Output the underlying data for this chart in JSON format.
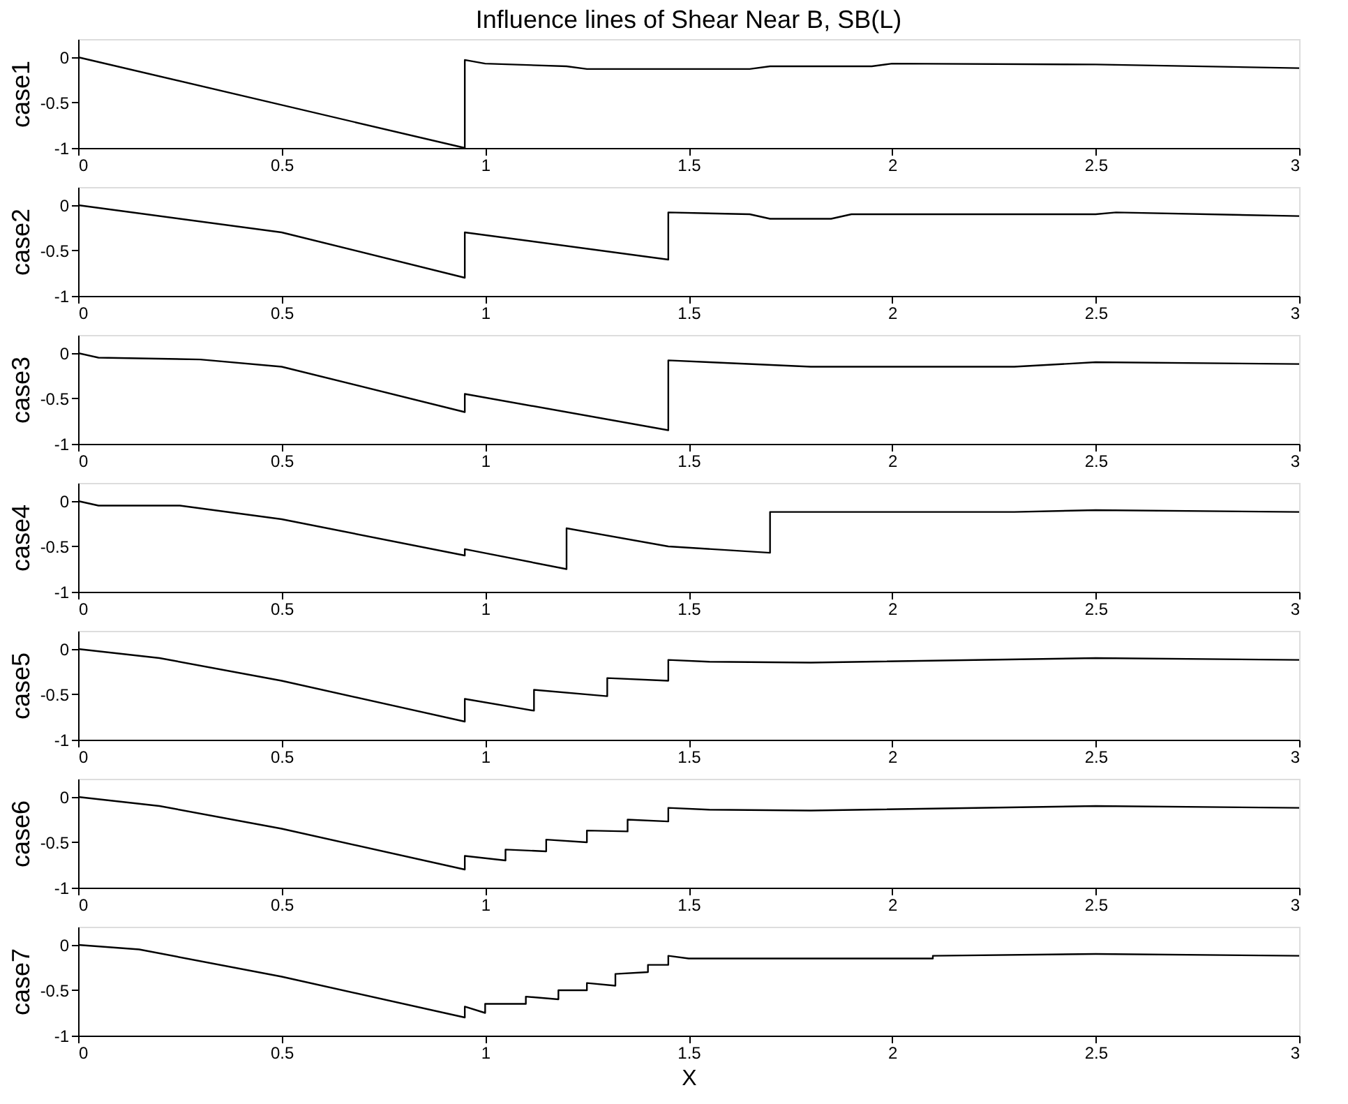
{
  "chart_data": [
    {
      "type": "line",
      "title": "Influence lines of Shear Near B, SB(L)",
      "ylabel": "case1",
      "xlim": [
        0,
        3
      ],
      "xticks": [
        0,
        0.5,
        1,
        1.5,
        2,
        2.5,
        3
      ],
      "ylim": [
        -1,
        0.2
      ],
      "yticks": [
        0,
        -0.5,
        -1
      ],
      "grid": false,
      "series": [
        {
          "color": "#000000",
          "x": [
            0,
            0.95,
            0.95,
            1.0,
            1.2,
            1.25,
            1.65,
            1.7,
            1.95,
            2.0,
            2.5,
            3
          ],
          "values": [
            0,
            -1.0,
            -0.03,
            -0.07,
            -0.1,
            -0.13,
            -0.13,
            -0.1,
            -0.1,
            -0.07,
            -0.08,
            -0.12
          ]
        }
      ]
    },
    {
      "type": "line",
      "ylabel": "case2",
      "xlim": [
        0,
        3
      ],
      "xticks": [
        0,
        0.5,
        1,
        1.5,
        2,
        2.5,
        3
      ],
      "ylim": [
        -1,
        0.2
      ],
      "yticks": [
        0,
        -0.5,
        -1
      ],
      "grid": false,
      "series": [
        {
          "color": "#000000",
          "x": [
            0,
            0.5,
            0.95,
            0.95,
            1.45,
            1.45,
            1.65,
            1.7,
            1.85,
            1.9,
            2.5,
            2.55,
            3
          ],
          "values": [
            0,
            -0.3,
            -0.8,
            -0.3,
            -0.6,
            -0.08,
            -0.1,
            -0.15,
            -0.15,
            -0.1,
            -0.1,
            -0.08,
            -0.12
          ]
        }
      ]
    },
    {
      "type": "line",
      "ylabel": "case3",
      "xlim": [
        0,
        3
      ],
      "xticks": [
        0,
        0.5,
        1,
        1.5,
        2,
        2.5,
        3
      ],
      "ylim": [
        -1,
        0.2
      ],
      "yticks": [
        0,
        -0.5,
        -1
      ],
      "grid": false,
      "series": [
        {
          "color": "#000000",
          "x": [
            0,
            0.05,
            0.3,
            0.5,
            0.95,
            0.95,
            1.45,
            1.45,
            1.55,
            1.8,
            2.3,
            2.5,
            3
          ],
          "values": [
            0,
            -0.05,
            -0.07,
            -0.15,
            -0.65,
            -0.45,
            -0.85,
            -0.08,
            -0.1,
            -0.15,
            -0.15,
            -0.1,
            -0.12
          ]
        }
      ]
    },
    {
      "type": "line",
      "ylabel": "case4",
      "xlim": [
        0,
        3
      ],
      "xticks": [
        0,
        0.5,
        1,
        1.5,
        2,
        2.5,
        3
      ],
      "ylim": [
        -1,
        0.2
      ],
      "yticks": [
        0,
        -0.5,
        -1
      ],
      "grid": false,
      "series": [
        {
          "color": "#000000",
          "x": [
            0,
            0.05,
            0.25,
            0.5,
            0.95,
            0.95,
            1.2,
            1.2,
            1.45,
            1.7,
            1.7,
            2.3,
            2.5,
            3
          ],
          "values": [
            0,
            -0.05,
            -0.05,
            -0.2,
            -0.6,
            -0.53,
            -0.75,
            -0.3,
            -0.5,
            -0.57,
            -0.12,
            -0.12,
            -0.1,
            -0.12
          ]
        }
      ]
    },
    {
      "type": "line",
      "ylabel": "case5",
      "xlim": [
        0,
        3
      ],
      "xticks": [
        0,
        0.5,
        1,
        1.5,
        2,
        2.5,
        3
      ],
      "ylim": [
        -1,
        0.2
      ],
      "yticks": [
        0,
        -0.5,
        -1
      ],
      "grid": false,
      "series": [
        {
          "color": "#000000",
          "x": [
            0,
            0.2,
            0.5,
            0.95,
            0.95,
            1.12,
            1.12,
            1.3,
            1.3,
            1.45,
            1.45,
            1.55,
            1.8,
            2.5,
            3
          ],
          "values": [
            0,
            -0.1,
            -0.35,
            -0.8,
            -0.55,
            -0.68,
            -0.45,
            -0.52,
            -0.32,
            -0.35,
            -0.12,
            -0.14,
            -0.15,
            -0.1,
            -0.12
          ]
        }
      ]
    },
    {
      "type": "line",
      "ylabel": "case6",
      "xlim": [
        0,
        3
      ],
      "xticks": [
        0,
        0.5,
        1,
        1.5,
        2,
        2.5,
        3
      ],
      "ylim": [
        -1,
        0.2
      ],
      "yticks": [
        0,
        -0.5,
        -1
      ],
      "grid": false,
      "series": [
        {
          "color": "#000000",
          "x": [
            0,
            0.2,
            0.5,
            0.95,
            0.95,
            1.05,
            1.05,
            1.15,
            1.15,
            1.25,
            1.25,
            1.35,
            1.35,
            1.45,
            1.45,
            1.55,
            1.8,
            2.5,
            3
          ],
          "values": [
            0,
            -0.1,
            -0.35,
            -0.8,
            -0.65,
            -0.7,
            -0.58,
            -0.6,
            -0.47,
            -0.5,
            -0.37,
            -0.38,
            -0.25,
            -0.27,
            -0.12,
            -0.14,
            -0.15,
            -0.1,
            -0.12
          ]
        }
      ]
    },
    {
      "type": "line",
      "ylabel": "case7",
      "xlabel": "X",
      "xlim": [
        0,
        3
      ],
      "xticks": [
        0,
        0.5,
        1,
        1.5,
        2,
        2.5,
        3
      ],
      "ylim": [
        -1,
        0.2
      ],
      "yticks": [
        0,
        -0.5,
        -1
      ],
      "grid": false,
      "series": [
        {
          "color": "#000000",
          "x": [
            0,
            0.15,
            0.5,
            0.95,
            0.95,
            1.0,
            1.0,
            1.1,
            1.1,
            1.18,
            1.18,
            1.25,
            1.25,
            1.32,
            1.32,
            1.4,
            1.4,
            1.45,
            1.45,
            1.5,
            2.1,
            2.1,
            2.5,
            3
          ],
          "values": [
            0,
            -0.05,
            -0.35,
            -0.8,
            -0.68,
            -0.75,
            -0.65,
            -0.65,
            -0.57,
            -0.6,
            -0.5,
            -0.5,
            -0.42,
            -0.45,
            -0.32,
            -0.3,
            -0.22,
            -0.22,
            -0.12,
            -0.15,
            -0.15,
            -0.12,
            -0.1,
            -0.12
          ]
        }
      ]
    }
  ]
}
